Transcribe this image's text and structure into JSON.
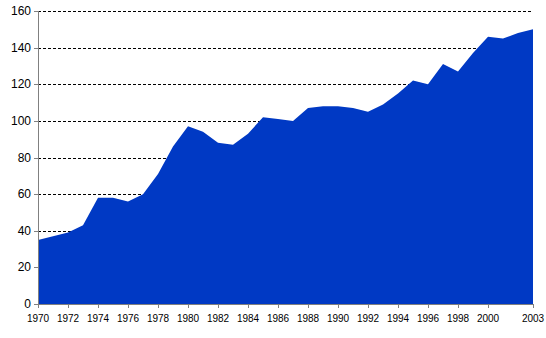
{
  "chart_data": {
    "type": "area",
    "x": [
      1970,
      1971,
      1972,
      1973,
      1974,
      1975,
      1976,
      1977,
      1978,
      1979,
      1980,
      1981,
      1982,
      1983,
      1984,
      1985,
      1986,
      1987,
      1988,
      1989,
      1990,
      1991,
      1992,
      1993,
      1994,
      1995,
      1996,
      1997,
      1998,
      1999,
      2000,
      2001,
      2002,
      2003
    ],
    "values": [
      35,
      37,
      39,
      43,
      58,
      58,
      56,
      60,
      71,
      86,
      97,
      94,
      88,
      87,
      93,
      102,
      101,
      100,
      107,
      108,
      108,
      107,
      105,
      109,
      115,
      122,
      120,
      131,
      127,
      137,
      146,
      145,
      148,
      150
    ],
    "color": "#0039c4",
    "xlim": [
      1970,
      2003
    ],
    "xticks": [
      1970,
      1972,
      1974,
      1976,
      1978,
      1980,
      1982,
      1984,
      1986,
      1988,
      1990,
      1992,
      1994,
      1996,
      1998,
      2000,
      2003
    ],
    "ylim": [
      0,
      160
    ],
    "yticks": [
      0,
      20,
      40,
      60,
      80,
      100,
      120,
      140,
      160
    ],
    "grid": true
  }
}
